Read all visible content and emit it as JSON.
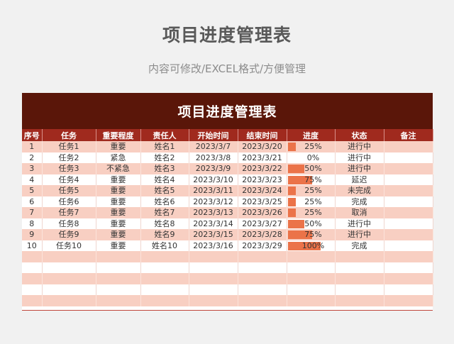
{
  "title": "项目进度管理表",
  "subtitle": "内容可修改/EXCEL格式/方便管理",
  "sheet": {
    "banner": "项目进度管理表",
    "headers": {
      "index": "序号",
      "task": "任务",
      "priority": "重要程度",
      "owner": "责任人",
      "start": "开始时间",
      "end": "结束时间",
      "progress": "进度",
      "status": "状态",
      "note": "备注"
    },
    "rows": [
      {
        "index": "1",
        "task": "任务1",
        "priority": "重要",
        "owner": "姓名1",
        "start": "2023/3/7",
        "end": "2023/3/20",
        "progress_label": "25%",
        "progress": 0.25,
        "status": "进行中",
        "note": ""
      },
      {
        "index": "2",
        "task": "任务2",
        "priority": "紧急",
        "owner": "姓名2",
        "start": "2023/3/8",
        "end": "2023/3/21",
        "progress_label": "0%",
        "progress": 0.0,
        "status": "进行中",
        "note": ""
      },
      {
        "index": "3",
        "task": "任务3",
        "priority": "不紧急",
        "owner": "姓名3",
        "start": "2023/3/9",
        "end": "2023/3/22",
        "progress_label": "50%",
        "progress": 0.5,
        "status": "进行中",
        "note": ""
      },
      {
        "index": "4",
        "task": "任务4",
        "priority": "重要",
        "owner": "姓名4",
        "start": "2023/3/10",
        "end": "2023/3/23",
        "progress_label": "75%",
        "progress": 0.75,
        "status": "延迟",
        "note": ""
      },
      {
        "index": "5",
        "task": "任务5",
        "priority": "重要",
        "owner": "姓名5",
        "start": "2023/3/11",
        "end": "2023/3/24",
        "progress_label": "25%",
        "progress": 0.25,
        "status": "未完成",
        "note": ""
      },
      {
        "index": "6",
        "task": "任务6",
        "priority": "重要",
        "owner": "姓名6",
        "start": "2023/3/12",
        "end": "2023/3/25",
        "progress_label": "25%",
        "progress": 0.25,
        "status": "完成",
        "note": ""
      },
      {
        "index": "7",
        "task": "任务7",
        "priority": "重要",
        "owner": "姓名7",
        "start": "2023/3/13",
        "end": "2023/3/26",
        "progress_label": "25%",
        "progress": 0.25,
        "status": "取消",
        "note": ""
      },
      {
        "index": "8",
        "task": "任务8",
        "priority": "重要",
        "owner": "姓名8",
        "start": "2023/3/14",
        "end": "2023/3/27",
        "progress_label": "50%",
        "progress": 0.5,
        "status": "进行中",
        "note": ""
      },
      {
        "index": "9",
        "task": "任务9",
        "priority": "重要",
        "owner": "姓名9",
        "start": "2023/3/15",
        "end": "2023/3/28",
        "progress_label": "75%",
        "progress": 0.75,
        "status": "进行中",
        "note": ""
      },
      {
        "index": "10",
        "task": "任务10",
        "priority": "重要",
        "owner": "姓名10",
        "start": "2023/3/16",
        "end": "2023/3/29",
        "progress_label": "100%",
        "progress": 1.0,
        "status": "完成",
        "note": ""
      }
    ],
    "blank_rows": 5,
    "colors": {
      "banner": "#5a1609",
      "header": "#a02a1e",
      "stripe": "#f8cfc2",
      "bar": "#eb7349"
    }
  }
}
